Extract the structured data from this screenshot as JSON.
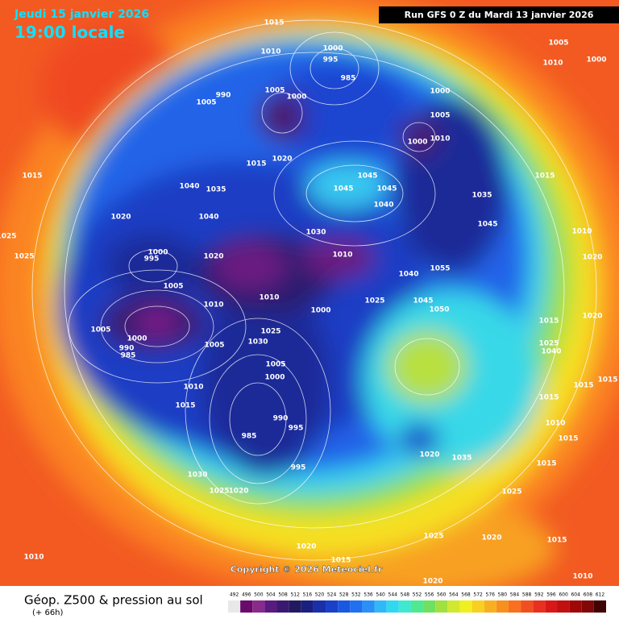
{
  "header": {
    "date": "Jeudi 15 janvier 2026",
    "time": "19:00 locale",
    "run": "Run GFS 0 Z du Mardi 13 janvier 2026"
  },
  "isobar_labels": [
    "1015",
    "1010",
    "1000",
    "995",
    "985",
    "1005",
    "1010",
    "1000",
    "990",
    "1000",
    "1005",
    "1005",
    "1000",
    "1005",
    "1010",
    "1000",
    "1015",
    "1020",
    "1015",
    "1040",
    "1035",
    "1045",
    "1045",
    "1045",
    "1040",
    "1035",
    "1045",
    "1015",
    "1040",
    "1020",
    "1030",
    "1025",
    "1025",
    "1010",
    "1020",
    "1010",
    "1020",
    "1000",
    "995",
    "1005",
    "1055",
    "1040",
    "1025",
    "1045",
    "1050",
    "1010",
    "1010",
    "1000",
    "1005",
    "1000",
    "990",
    "985",
    "1005",
    "1025",
    "1030",
    "1005",
    "1000",
    "1010",
    "1015",
    "990",
    "995",
    "985",
    "995",
    "1030",
    "1025",
    "1020",
    "1015",
    "1020",
    "1025",
    "1040",
    "1015",
    "1015",
    "1015",
    "1010",
    "1015",
    "1020",
    "1035",
    "1015",
    "1025",
    "1020",
    "1025",
    "1020",
    "1015",
    "1010",
    "1015",
    "1010",
    "1020"
  ],
  "copyright": "Copyright © 2026 Meteociel.fr",
  "footer": {
    "title": "Géop. Z500 & pression au sol",
    "lead": "(+ 66h)"
  },
  "legend": {
    "values": [
      492,
      496,
      500,
      504,
      508,
      512,
      516,
      520,
      524,
      528,
      532,
      536,
      540,
      544,
      548,
      552,
      556,
      560,
      564,
      568,
      572,
      576,
      580,
      584,
      588,
      592,
      596,
      600,
      604,
      608,
      612
    ],
    "colors": [
      "#e8e8e8",
      "#6a0a6a",
      "#8a2a8a",
      "#5a1a80",
      "#3a1a70",
      "#221a60",
      "#1a2080",
      "#1a30a8",
      "#1a40c8",
      "#1a58e0",
      "#2070f0",
      "#2a90f8",
      "#30b8f8",
      "#30d8f0",
      "#40e8d0",
      "#50e890",
      "#70e060",
      "#a0e040",
      "#d0e830",
      "#f0f020",
      "#f8d020",
      "#f8b020",
      "#f89020",
      "#f87020",
      "#f05020",
      "#e83020",
      "#d81818",
      "#c01010",
      "#a00808",
      "#800808",
      "#400404"
    ]
  }
}
